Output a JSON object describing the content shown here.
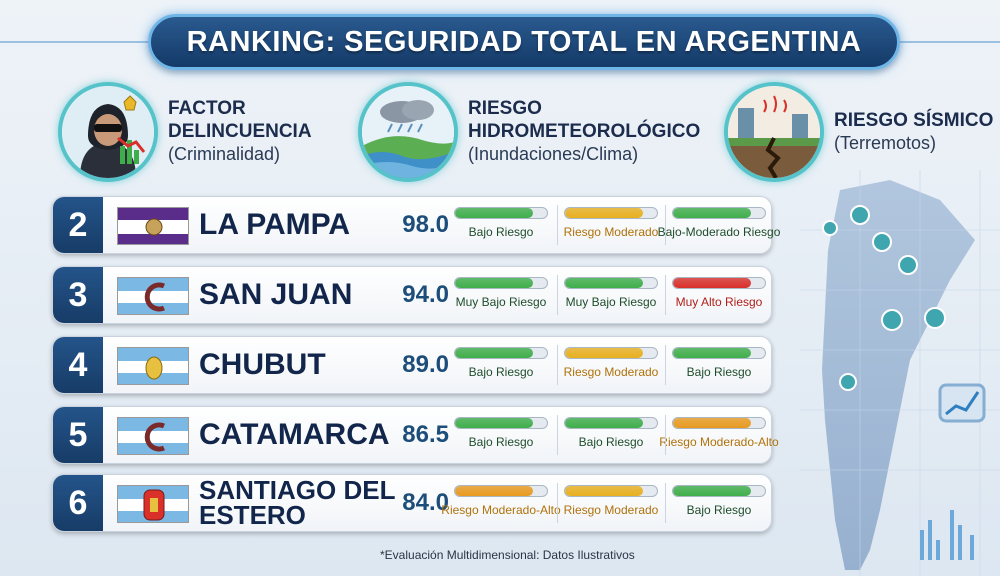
{
  "title": "RANKING: SEGURIDAD TOTAL EN ARGENTINA",
  "categories": [
    {
      "title": "FACTOR DELINCUENCIA",
      "subtitle": "(Criminalidad)",
      "icon": "criminal-icon"
    },
    {
      "title": "RIESGO HIDROMETEOROLÓGICO",
      "subtitle": "(Inundaciones/Clima)",
      "icon": "flood-icon"
    },
    {
      "title": "RIESGO SÍSMICO",
      "subtitle": "(Terremotos)",
      "icon": "earthquake-icon"
    }
  ],
  "rows": [
    {
      "rank": "2",
      "province": "LA PAMPA",
      "score": "98.0",
      "crime": {
        "label": "Bajo Riesgo",
        "level": 0.85,
        "color": "#3fae4a",
        "text_color": "#1e4d2b"
      },
      "hydro": {
        "label": "Riesgo Moderado",
        "level": 0.85,
        "color": "#e8b020",
        "text_color": "#b0720a"
      },
      "seismic": {
        "label": "Bajo-Moderado Riesgo",
        "level": 0.85,
        "color": "#3fae4a",
        "text_color": "#1e4d2b"
      }
    },
    {
      "rank": "3",
      "province": "SAN JUAN",
      "score": "94.0",
      "crime": {
        "label": "Muy Bajo Riesgo",
        "level": 0.85,
        "color": "#3fae4a",
        "text_color": "#1e4d2b"
      },
      "hydro": {
        "label": "Muy Bajo Riesgo",
        "level": 0.85,
        "color": "#3fae4a",
        "text_color": "#1e4d2b"
      },
      "seismic": {
        "label": "Muy Alto Riesgo",
        "level": 0.85,
        "color": "#d9302a",
        "text_color": "#b0201a"
      }
    },
    {
      "rank": "4",
      "province": "CHUBUT",
      "score": "89.0",
      "crime": {
        "label": "Bajo Riesgo",
        "level": 0.85,
        "color": "#3fae4a",
        "text_color": "#1e4d2b"
      },
      "hydro": {
        "label": "Riesgo Moderado",
        "level": 0.85,
        "color": "#e8b020",
        "text_color": "#b0720a"
      },
      "seismic": {
        "label": "Bajo Riesgo",
        "level": 0.85,
        "color": "#3fae4a",
        "text_color": "#1e4d2b"
      }
    },
    {
      "rank": "5",
      "province": "CATAMARCA",
      "score": "86.5",
      "crime": {
        "label": "Bajo Riesgo",
        "level": 0.85,
        "color": "#3fae4a",
        "text_color": "#1e4d2b"
      },
      "hydro": {
        "label": "Bajo Riesgo",
        "level": 0.85,
        "color": "#3fae4a",
        "text_color": "#1e4d2b"
      },
      "seismic": {
        "label": "Riesgo Moderado-Alto",
        "level": 0.85,
        "color": "#e89a20",
        "text_color": "#b0720a"
      }
    },
    {
      "rank": "6",
      "province": "SANTIAGO DEL ESTERO",
      "score": "84.0",
      "crime": {
        "label": "Riesgo Moderado-Alto",
        "level": 0.85,
        "color": "#e89a20",
        "text_color": "#b0720a"
      },
      "hydro": {
        "label": "Riesgo Moderado",
        "level": 0.85,
        "color": "#e8b020",
        "text_color": "#b0720a"
      },
      "seismic": {
        "label": "Bajo Riesgo",
        "level": 0.85,
        "color": "#3fae4a",
        "text_color": "#1e4d2b"
      }
    }
  ],
  "footnote": "*Evaluación Multidimensional: Datos Ilustrativos"
}
